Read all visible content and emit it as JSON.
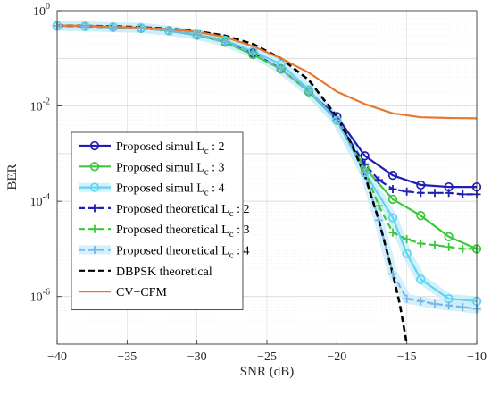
{
  "chart_data": {
    "type": "line",
    "title": "",
    "xlabel": "SNR (dB)",
    "ylabel": "BER",
    "xlim": [
      -40,
      -10
    ],
    "ylim": [
      1e-07,
      1
    ],
    "yscale": "log",
    "grid": true,
    "legend_position": "bottom-left",
    "x_ticks": [
      -40,
      -35,
      -30,
      -25,
      -20,
      -15,
      -10
    ],
    "x_tick_labels": [
      "−40",
      "−35",
      "−30",
      "−25",
      "−20",
      "−15",
      "−10"
    ],
    "y_ticks": [
      {
        "value": 1,
        "base": "10",
        "exp": "0"
      },
      {
        "value": 0.01,
        "base": "10",
        "exp": "-2"
      },
      {
        "value": 0.0001,
        "base": "10",
        "exp": "-4"
      },
      {
        "value": 1e-06,
        "base": "10",
        "exp": "-6"
      }
    ],
    "series": [
      {
        "name_main": "Proposed simul L",
        "name_sub": "c",
        "name_tail": " : 2",
        "color": "#1f1fb4",
        "dash": "solid",
        "marker": "circle",
        "halo": false,
        "x": [
          -40,
          -38,
          -36,
          -34,
          -32,
          -30,
          -28,
          -26,
          -24,
          -22,
          -20,
          -18,
          -16,
          -14,
          -12,
          -10
        ],
        "y": [
          0.48,
          0.47,
          0.45,
          0.43,
          0.38,
          0.31,
          0.22,
          0.13,
          0.06,
          0.02,
          0.006,
          0.0009,
          0.00035,
          0.00022,
          0.0002,
          0.0002
        ]
      },
      {
        "name_main": "Proposed simul L",
        "name_sub": "c",
        "name_tail": " : 3",
        "color": "#3cc83c",
        "dash": "solid",
        "marker": "circle",
        "halo": false,
        "x": [
          -40,
          -38,
          -36,
          -34,
          -32,
          -30,
          -28,
          -26,
          -24,
          -22,
          -20,
          -18,
          -16,
          -14,
          -12,
          -10
        ],
        "y": [
          0.48,
          0.47,
          0.45,
          0.43,
          0.38,
          0.31,
          0.22,
          0.12,
          0.06,
          0.02,
          0.005,
          0.0005,
          0.00011,
          5e-05,
          1.8e-05,
          1e-05
        ]
      },
      {
        "name_main": "Proposed simul L",
        "name_sub": "c",
        "name_tail": " : 4",
        "color": "#60d4f0",
        "dash": "solid",
        "marker": "circle",
        "halo": true,
        "x": [
          -40,
          -38,
          -36,
          -34,
          -32,
          -30,
          -28,
          -26,
          -24,
          -22,
          -20,
          -18,
          -16,
          -15,
          -14,
          -12,
          -10
        ],
        "y": [
          0.48,
          0.47,
          0.45,
          0.44,
          0.38,
          0.32,
          0.24,
          0.14,
          0.075,
          0.022,
          0.005,
          0.0004,
          4.5e-05,
          8e-06,
          2.3e-06,
          9e-07,
          8e-07
        ]
      },
      {
        "name_main": "Proposed theoretical L",
        "name_sub": "c",
        "name_tail": " : 2",
        "color": "#1f1fb4",
        "dash": "dashed",
        "marker": "plus",
        "halo": false,
        "x": [
          -40,
          -38,
          -36,
          -34,
          -32,
          -30,
          -28,
          -26,
          -24,
          -22,
          -20,
          -18,
          -17,
          -16,
          -15,
          -14,
          -13,
          -12,
          -11,
          -10
        ],
        "y": [
          0.48,
          0.47,
          0.45,
          0.43,
          0.38,
          0.31,
          0.22,
          0.13,
          0.06,
          0.02,
          0.005,
          0.0006,
          0.00028,
          0.00018,
          0.00016,
          0.00015,
          0.00015,
          0.00015,
          0.00014,
          0.00014
        ]
      },
      {
        "name_main": "Proposed theoretical L",
        "name_sub": "c",
        "name_tail": " : 3",
        "color": "#3cc83c",
        "dash": "dashed",
        "marker": "plus",
        "halo": false,
        "x": [
          -40,
          -38,
          -36,
          -34,
          -32,
          -30,
          -28,
          -26,
          -24,
          -22,
          -20,
          -18,
          -17,
          -16,
          -15,
          -14,
          -13,
          -12,
          -11,
          -10
        ],
        "y": [
          0.48,
          0.47,
          0.45,
          0.43,
          0.38,
          0.31,
          0.22,
          0.13,
          0.06,
          0.02,
          0.005,
          0.00045,
          8e-05,
          2.2e-05,
          1.6e-05,
          1.3e-05,
          1.2e-05,
          1.1e-05,
          1e-05,
          1e-05
        ]
      },
      {
        "name_main": "Proposed theoretical L",
        "name_sub": "c",
        "name_tail": " : 4",
        "color": "#7ab4e8",
        "dash": "dashed",
        "marker": "plus",
        "halo": true,
        "x": [
          -40,
          -38,
          -36,
          -34,
          -32,
          -30,
          -28,
          -26,
          -24,
          -22,
          -20,
          -18,
          -17,
          -16,
          -15,
          -14,
          -13,
          -12,
          -11,
          -10
        ],
        "y": [
          0.48,
          0.47,
          0.45,
          0.43,
          0.38,
          0.31,
          0.22,
          0.13,
          0.06,
          0.02,
          0.005,
          0.0004,
          4e-05,
          3e-06,
          9e-07,
          8e-07,
          7e-07,
          6.5e-07,
          6e-07,
          5.5e-07
        ]
      },
      {
        "name_main": "DBPSK theoretical",
        "name_sub": "",
        "name_tail": "",
        "color": "#000000",
        "dash": "dashed",
        "marker": "none",
        "halo": false,
        "x": [
          -40,
          -38,
          -36,
          -34,
          -32,
          -30,
          -28,
          -26,
          -24,
          -22,
          -20,
          -19,
          -18,
          -17,
          -16,
          -15.5,
          -15
        ],
        "y": [
          0.49,
          0.48,
          0.47,
          0.45,
          0.42,
          0.37,
          0.3,
          0.2,
          0.1,
          0.035,
          0.006,
          0.0017,
          0.00035,
          4e-05,
          3e-06,
          7e-07,
          1e-07
        ]
      },
      {
        "name_main": "CV−CFM",
        "name_sub": "",
        "name_tail": "",
        "color": "#e87830",
        "dash": "solid",
        "marker": "none",
        "halo": false,
        "x": [
          -40,
          -38,
          -36,
          -34,
          -32,
          -30,
          -28,
          -26,
          -24,
          -22,
          -20,
          -18,
          -16,
          -14,
          -12,
          -10
        ],
        "y": [
          0.49,
          0.48,
          0.46,
          0.44,
          0.41,
          0.36,
          0.28,
          0.18,
          0.1,
          0.05,
          0.02,
          0.011,
          0.007,
          0.0058,
          0.0056,
          0.0055
        ]
      }
    ]
  }
}
